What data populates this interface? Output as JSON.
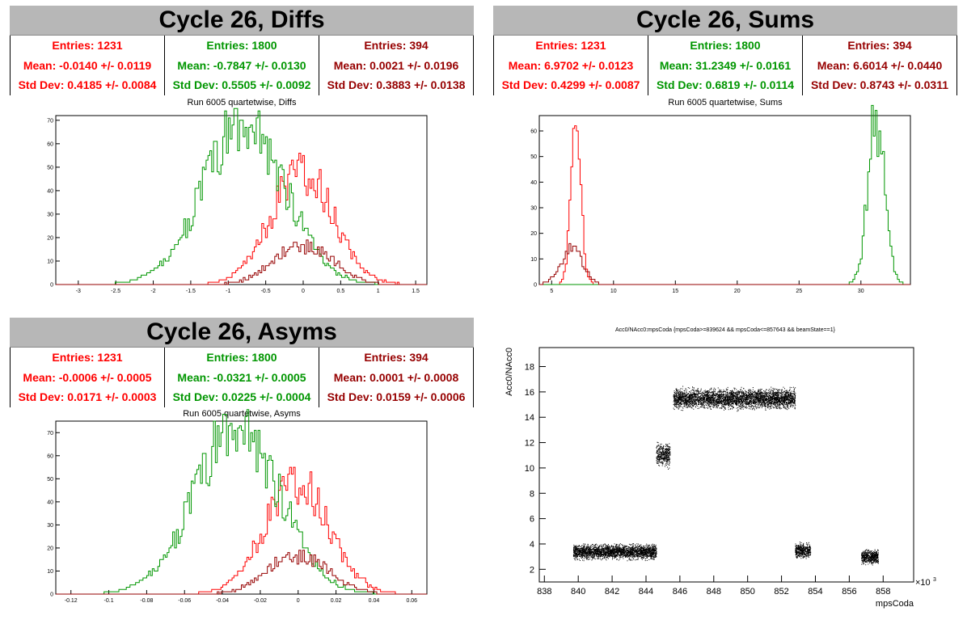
{
  "panels": {
    "diffs": {
      "header": "Cycle 26, Diffs",
      "stats": [
        {
          "entries": "Entries: 1231",
          "mean": "Mean: -0.0140 +/- 0.0119",
          "std": "Std Dev: 0.4185 +/- 0.0084"
        },
        {
          "entries": "Entries: 1800",
          "mean": "Mean: -0.7847 +/- 0.0130",
          "std": "Std Dev: 0.5505 +/- 0.0092"
        },
        {
          "entries": "Entries: 394",
          "mean": "Mean: 0.0021 +/- 0.0196",
          "std": "Std Dev: 0.3883 +/- 0.0138"
        }
      ],
      "subtitle": "Run 6005 quartetwise, Diffs"
    },
    "sums": {
      "header": "Cycle 26, Sums",
      "stats": [
        {
          "entries": "Entries: 1231",
          "mean": "Mean: 6.9702 +/- 0.0123",
          "std": "Std Dev: 0.4299 +/- 0.0087"
        },
        {
          "entries": "Entries: 1800",
          "mean": "Mean: 31.2349 +/- 0.0161",
          "std": "Std Dev: 0.6819 +/- 0.0114"
        },
        {
          "entries": "Entries: 394",
          "mean": "Mean: 6.6014 +/- 0.0440",
          "std": "Std Dev: 0.8743 +/- 0.0311"
        }
      ],
      "subtitle": "Run 6005 quartetwise, Sums"
    },
    "asyms": {
      "header": "Cycle 26, Asyms",
      "stats": [
        {
          "entries": "Entries: 1231",
          "mean": "Mean: -0.0006 +/- 0.0005",
          "std": "Std Dev: 0.0171 +/- 0.0003"
        },
        {
          "entries": "Entries: 1800",
          "mean": "Mean: -0.0321 +/- 0.0005",
          "std": "Std Dev: 0.0225 +/- 0.0004"
        },
        {
          "entries": "Entries: 394",
          "mean": "Mean: 0.0001 +/- 0.0008",
          "std": "Std Dev: 0.0159 +/- 0.0006"
        }
      ],
      "subtitle": "Run 6005 quartetwise, Asyms"
    },
    "scatter": {
      "title": "Acc0/NAcc0:mpsCoda {mpsCoda>=839624 && mpsCoda<=857643 && beamState==1}",
      "xlabel": "mpsCoda",
      "ylabel": "Acc0/NAcc0",
      "xmult": "×10",
      "xmult_exp": "3"
    }
  },
  "colors": {
    "series0": "#ff0000",
    "series1": "#009600",
    "series2": "#960000"
  },
  "chart_data": [
    {
      "type": "histogram",
      "name": "diffs",
      "xlim": [
        -3.3,
        1.65
      ],
      "ylim": [
        0,
        72
      ],
      "xticks": [
        -3,
        -2.5,
        -2,
        -1.5,
        -1,
        -0.5,
        0,
        0.5,
        1,
        1.5
      ],
      "yticks": [
        0,
        10,
        20,
        30,
        40,
        50,
        60,
        70
      ],
      "series": [
        {
          "mean": -0.014,
          "std": 0.4185,
          "entries": 1231,
          "peak": 48,
          "color": "series0"
        },
        {
          "mean": -0.7847,
          "std": 0.5505,
          "entries": 1800,
          "peak": 68,
          "color": "series1"
        },
        {
          "mean": 0.0021,
          "std": 0.3883,
          "entries": 394,
          "peak": 17,
          "color": "series2"
        }
      ]
    },
    {
      "type": "histogram",
      "name": "sums",
      "xlim": [
        4,
        34
      ],
      "ylim": [
        0,
        66
      ],
      "xticks": [
        5,
        10,
        15,
        20,
        25,
        30
      ],
      "yticks": [
        0,
        10,
        20,
        30,
        40,
        50,
        60
      ],
      "series": [
        {
          "mean": 6.9702,
          "std": 0.4299,
          "entries": 1231,
          "peak": 56,
          "color": "series0"
        },
        {
          "mean": 31.2349,
          "std": 0.6819,
          "entries": 1800,
          "peak": 64,
          "color": "series1"
        },
        {
          "mean": 6.6014,
          "std": 0.8743,
          "entries": 394,
          "peak": 14,
          "color": "series2"
        }
      ]
    },
    {
      "type": "histogram",
      "name": "asyms",
      "xlim": [
        -0.128,
        0.068
      ],
      "ylim": [
        0,
        75
      ],
      "xticks": [
        -0.12,
        -0.1,
        -0.08,
        -0.06,
        -0.04,
        -0.02,
        0,
        0.02,
        0.04,
        0.06
      ],
      "yticks": [
        0,
        10,
        20,
        30,
        40,
        50,
        60,
        70
      ],
      "series": [
        {
          "mean": -0.0006,
          "std": 0.0171,
          "entries": 1231,
          "peak": 48,
          "color": "series0"
        },
        {
          "mean": -0.0321,
          "std": 0.0225,
          "entries": 1800,
          "peak": 72,
          "color": "series1"
        },
        {
          "mean": 0.0001,
          "std": 0.0159,
          "entries": 394,
          "peak": 17,
          "color": "series2"
        }
      ]
    },
    {
      "type": "scatter",
      "name": "mpsCoda",
      "xlim": [
        837.7,
        859.8
      ],
      "ylim": [
        1,
        19.5
      ],
      "xticks": [
        838,
        840,
        842,
        844,
        846,
        848,
        850,
        852,
        854,
        856,
        858
      ],
      "yticks": [
        2,
        4,
        6,
        8,
        10,
        12,
        14,
        16,
        18
      ],
      "clusters": [
        {
          "x": [
            839.7,
            844.6
          ],
          "y_center": 3.4,
          "y_spread": 0.5
        },
        {
          "x": [
            844.6,
            845.4
          ],
          "y_center": 11.0,
          "y_spread": 0.8
        },
        {
          "x": [
            845.6,
            852.8
          ],
          "y_center": 15.5,
          "y_spread": 0.7
        },
        {
          "x": [
            852.8,
            853.7
          ],
          "y_center": 3.5,
          "y_spread": 0.5
        },
        {
          "x": [
            856.7,
            857.7
          ],
          "y_center": 3.0,
          "y_spread": 0.5
        }
      ]
    }
  ]
}
